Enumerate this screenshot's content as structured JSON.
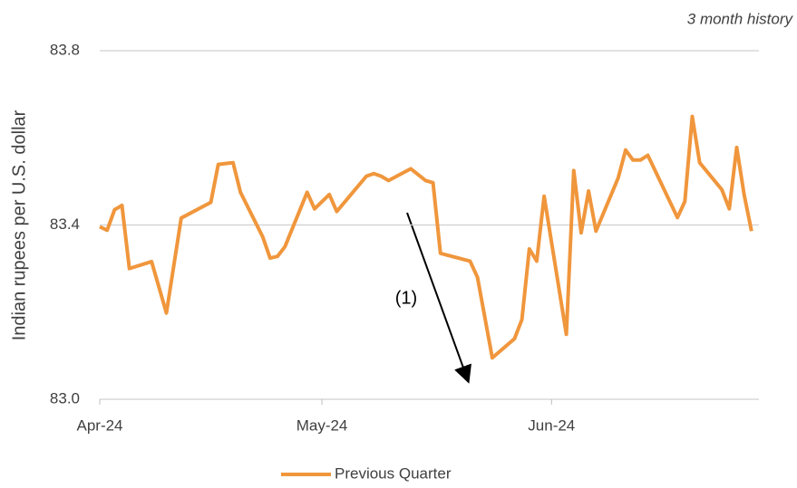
{
  "chart_data": {
    "type": "line",
    "subtitle": "3 month history",
    "y_label": "Indian rupees per U.S. dollar",
    "annotation": "(1)",
    "x": [
      0,
      1,
      2,
      3,
      4,
      7,
      9,
      11,
      15,
      16,
      18,
      19,
      22,
      23,
      24,
      25,
      28,
      29,
      31,
      32,
      36,
      37,
      38,
      39,
      42,
      44,
      45,
      46,
      50,
      51,
      53,
      56,
      57,
      58,
      59,
      60,
      63,
      64,
      65,
      66,
      67,
      70,
      71,
      72,
      73,
      74,
      78,
      79,
      80,
      81,
      84,
      85,
      86,
      87,
      88
    ],
    "series": [
      {
        "name": "Previous Quarter",
        "color": "#f0963c",
        "values": [
          83.396,
          83.388,
          83.435,
          83.445,
          83.3,
          83.316,
          83.198,
          83.416,
          83.452,
          83.539,
          83.543,
          83.475,
          83.373,
          83.324,
          83.328,
          83.35,
          83.475,
          83.437,
          83.47,
          83.431,
          83.512,
          83.518,
          83.512,
          83.502,
          83.529,
          83.502,
          83.497,
          83.335,
          83.317,
          83.28,
          83.095,
          83.139,
          83.183,
          83.345,
          83.317,
          83.466,
          83.149,
          83.525,
          83.382,
          83.478,
          83.386,
          83.508,
          83.572,
          83.549,
          83.549,
          83.56,
          83.417,
          83.454,
          83.649,
          83.543,
          83.481,
          83.437,
          83.578,
          83.47,
          83.386
        ]
      }
    ],
    "xlim": [
      0,
      89
    ],
    "xticks": [
      {
        "value": 0,
        "label": "Apr-24"
      },
      {
        "value": 30,
        "label": "May-24"
      },
      {
        "value": 61,
        "label": "Jun-24"
      }
    ],
    "ylim": [
      83.0,
      83.8
    ],
    "yticks": [
      {
        "value": 83,
        "label": "83.0"
      },
      83.4,
      83.8
    ],
    "grid": true,
    "legend": "bottom"
  }
}
